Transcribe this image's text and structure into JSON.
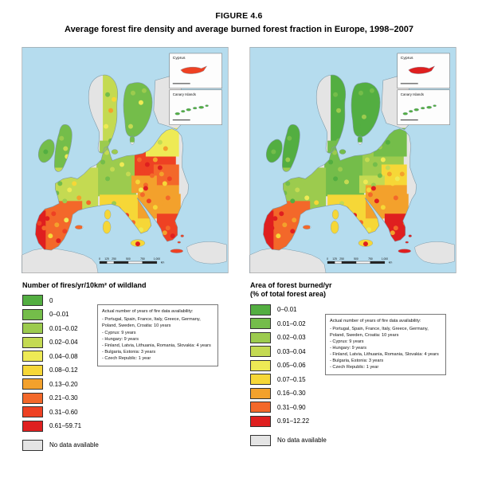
{
  "figure": {
    "number": "FIGURE 4.6",
    "title": "Average forest fire density and average burned forest fraction in Europe, 1998–2007"
  },
  "note": {
    "title": "Actual number of years of fire data availability:",
    "items": [
      "Portugal, Spain, France, Italy, Greece, Germany, Poland, Sweden, Croatia: 10 years",
      "Cyprus: 9 years",
      "Hungary: 9 years",
      "Finland, Latvia, Lithuania, Romania, Slovakia: 4 years",
      "Bulgaria, Estonia: 3 years",
      "Czech Republic: 1 year"
    ]
  },
  "maps": {
    "left": {
      "legend_title": "Number of fires/yr/10km² of wildland",
      "insets": [
        {
          "label": "Cyprus"
        },
        {
          "label": "Canary Islands"
        }
      ],
      "scale": {
        "ticks": [
          "0",
          "125",
          "250",
          "500",
          "750",
          "1,000"
        ],
        "unit": "km"
      },
      "legend": [
        {
          "label": "0",
          "color": "#53ae41"
        },
        {
          "label": "0–0.01",
          "color": "#74bd4a"
        },
        {
          "label": "0.01–0.02",
          "color": "#9ccb4e"
        },
        {
          "label": "0.02–0.04",
          "color": "#c4da52"
        },
        {
          "label": "0.04–0.08",
          "color": "#eeea55"
        },
        {
          "label": "0.08–0.12",
          "color": "#f6d737"
        },
        {
          "label": "0.13–0.20",
          "color": "#f3a12c"
        },
        {
          "label": "0.21–0.30",
          "color": "#f3682a"
        },
        {
          "label": "0.31–0.60",
          "color": "#ee4123"
        },
        {
          "label": "0.61–59.71",
          "color": "#df1f1f"
        }
      ],
      "no_data": {
        "label": "No data available",
        "color": "#e4e4e4"
      },
      "region_fills": {
        "sweden": {
          "fill": "#c4da52",
          "spots": [
            "#74bd4a",
            "#f3a12c",
            "#eeea55",
            "#74bd4a",
            "#f6d737"
          ]
        },
        "finland": {
          "fill": "#74bd4a",
          "spots": [
            "#9ccb4e",
            "#eeea55",
            "#74bd4a",
            "#c4da52",
            "#9ccb4e"
          ]
        },
        "uk": {
          "fill": "#74bd4a",
          "spots": [
            "#9ccb4e",
            "#c4da52",
            "#74bd4a",
            "#eeea55",
            "#53ae41"
          ]
        },
        "denmark": {
          "fill": "#9ccb4e",
          "spots": [
            "#c4da52"
          ]
        },
        "germany": {
          "fill": "#9ccb4e",
          "spots": [
            "#74bd4a",
            "#c4da52",
            "#eeea55",
            "#74bd4a",
            "#9ccb4e",
            "#c4da52"
          ]
        },
        "poland": {
          "fill": "#ee4123",
          "spots": [
            "#f3682a",
            "#df1f1f",
            "#f3a12c",
            "#ee4123",
            "#f3682a",
            "#df1f1f"
          ]
        },
        "baltics": {
          "fill": "#eeea55",
          "spots": [
            "#f6d737",
            "#c4da52",
            "#f3a12c",
            "#eeea55"
          ]
        },
        "romania": {
          "fill": "#f3682a",
          "spots": [
            "#f3a12c",
            "#ee4123",
            "#f6d737",
            "#f3682a"
          ]
        },
        "hungary": {
          "fill": "#f3a12c",
          "spots": [
            "#f6d737",
            "#f3682a",
            "#eeea55"
          ]
        },
        "france": {
          "fill": "#c4da52",
          "spots": [
            "#74bd4a",
            "#eeea55",
            "#f3a12c",
            "#9ccb4e",
            "#f6d737",
            "#f3682a",
            "#74bd4a"
          ]
        },
        "iberia": {
          "fill": "#f3682a",
          "spots": [
            "#df1f1f",
            "#f3a12c",
            "#ee4123",
            "#f6d737",
            "#df1f1f",
            "#f3682a",
            "#eeea55",
            "#ee4123"
          ]
        },
        "portugal": {
          "fill": "#df1f1f",
          "spots": [
            "#ee4123",
            "#df1f1f"
          ]
        },
        "italy": {
          "fill": "#f6d737",
          "spots": [
            "#f3a12c",
            "#ee4123",
            "#f3682a",
            "#eeea55",
            "#9ccb4e",
            "#df1f1f"
          ]
        },
        "balkans": {
          "fill": "#f3a12c",
          "spots": [
            "#f3682a",
            "#ee4123",
            "#f6d737",
            "#df1f1f",
            "#f3a12c",
            "#f3682a"
          ]
        },
        "greece": {
          "fill": "#ee4123",
          "spots": [
            "#f3682a",
            "#df1f1f",
            "#f3a12c",
            "#f3682a"
          ]
        },
        "east_nodata": {
          "fill": "#e4e4e4",
          "spots": []
        },
        "cyprus": {
          "fill": "#ee4123"
        },
        "canary": {
          "fill": "#53ae41"
        }
      }
    },
    "right": {
      "legend_title": "Area of forest burned/yr",
      "legend_title2": "(% of total forest area)",
      "insets": [
        {
          "label": "Cyprus"
        },
        {
          "label": "Canary Islands"
        }
      ],
      "scale": {
        "ticks": [
          "0",
          "125",
          "250",
          "500",
          "750",
          "1,000"
        ],
        "unit": "km"
      },
      "legend": [
        {
          "label": "0–0.01",
          "color": "#53ae41"
        },
        {
          "label": "0.01–0.02",
          "color": "#74bd4a"
        },
        {
          "label": "0.02–0.03",
          "color": "#9ccb4e"
        },
        {
          "label": "0.03–0.04",
          "color": "#c4da52"
        },
        {
          "label": "0.05–0.06",
          "color": "#eeea55"
        },
        {
          "label": "0.07–0.15",
          "color": "#f6d737"
        },
        {
          "label": "0.16–0.30",
          "color": "#f3a12c"
        },
        {
          "label": "0.31–0.90",
          "color": "#f3682a"
        },
        {
          "label": "0.91–12.22",
          "color": "#df1f1f"
        }
      ],
      "no_data": {
        "label": "No data available",
        "color": "#e4e4e4"
      },
      "region_fills": {
        "sweden": {
          "fill": "#53ae41",
          "spots": [
            "#74bd4a",
            "#9ccb4e",
            "#53ae41",
            "#74bd4a",
            "#53ae41"
          ]
        },
        "finland": {
          "fill": "#53ae41",
          "spots": [
            "#74bd4a",
            "#53ae41",
            "#9ccb4e",
            "#53ae41",
            "#74bd4a"
          ]
        },
        "uk": {
          "fill": "#53ae41",
          "spots": [
            "#74bd4a",
            "#53ae41",
            "#9ccb4e",
            "#53ae41",
            "#74bd4a"
          ]
        },
        "denmark": {
          "fill": "#74bd4a",
          "spots": [
            "#9ccb4e"
          ]
        },
        "germany": {
          "fill": "#74bd4a",
          "spots": [
            "#53ae41",
            "#9ccb4e",
            "#74bd4a",
            "#53ae41",
            "#c4da52",
            "#74bd4a"
          ]
        },
        "poland": {
          "fill": "#9ccb4e",
          "spots": [
            "#c4da52",
            "#74bd4a",
            "#eeea55",
            "#9ccb4e",
            "#74bd4a",
            "#c4da52"
          ]
        },
        "baltics": {
          "fill": "#74bd4a",
          "spots": [
            "#9ccb4e",
            "#53ae41",
            "#74bd4a",
            "#9ccb4e"
          ]
        },
        "romania": {
          "fill": "#f6d737",
          "spots": [
            "#f3a12c",
            "#eeea55",
            "#f6d737",
            "#f3a12c"
          ]
        },
        "hungary": {
          "fill": "#c4da52",
          "spots": [
            "#eeea55",
            "#9ccb4e",
            "#f6d737"
          ]
        },
        "france": {
          "fill": "#9ccb4e",
          "spots": [
            "#74bd4a",
            "#c4da52",
            "#eeea55",
            "#53ae41",
            "#9ccb4e",
            "#f6d737",
            "#74bd4a"
          ]
        },
        "iberia": {
          "fill": "#f3682a",
          "spots": [
            "#df1f1f",
            "#f3a12c",
            "#df1f1f",
            "#f6d737",
            "#f3682a",
            "#df1f1f",
            "#f3a12c",
            "#df1f1f"
          ]
        },
        "portugal": {
          "fill": "#df1f1f",
          "spots": [
            "#df1f1f",
            "#df1f1f"
          ]
        },
        "italy": {
          "fill": "#f6d737",
          "spots": [
            "#f3a12c",
            "#df1f1f",
            "#f3682a",
            "#eeea55",
            "#c4da52",
            "#df1f1f"
          ]
        },
        "balkans": {
          "fill": "#f3a12c",
          "spots": [
            "#f3682a",
            "#df1f1f",
            "#f6d737",
            "#df1f1f",
            "#f3a12c",
            "#f3682a"
          ]
        },
        "greece": {
          "fill": "#df1f1f",
          "spots": [
            "#f3682a",
            "#df1f1f",
            "#f3a12c",
            "#f3682a"
          ]
        },
        "east_nodata": {
          "fill": "#e4e4e4",
          "spots": []
        },
        "cyprus": {
          "fill": "#df1f1f"
        },
        "canary": {
          "fill": "#53ae41"
        }
      }
    }
  }
}
